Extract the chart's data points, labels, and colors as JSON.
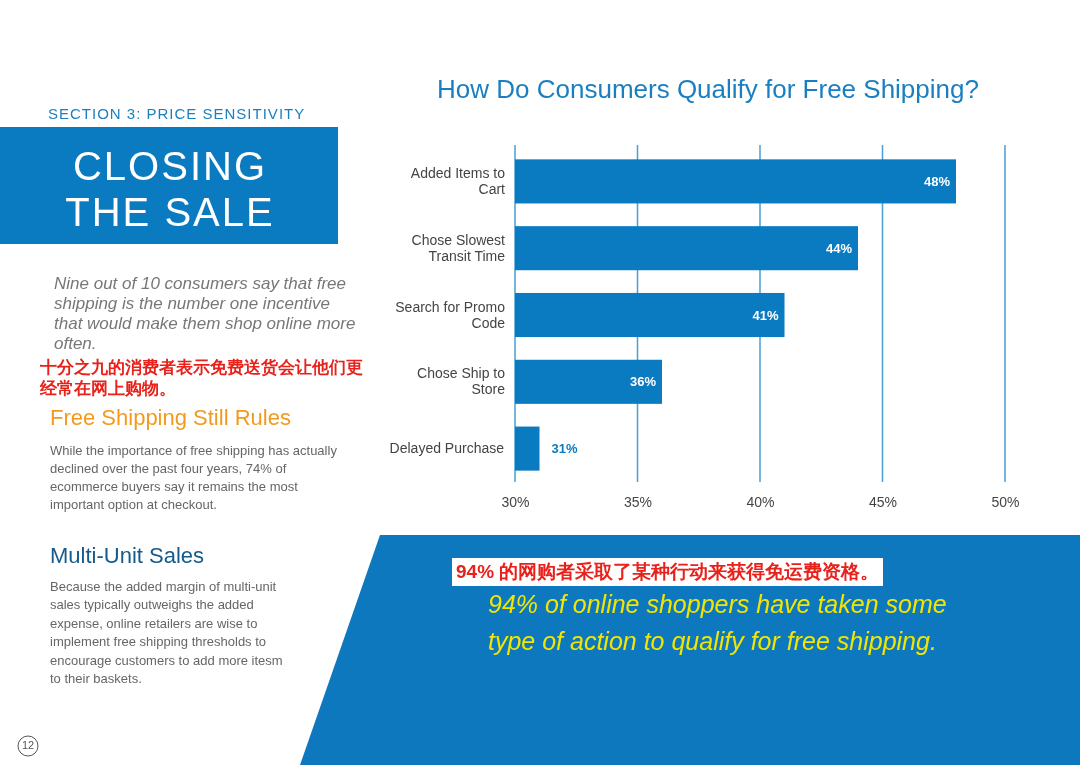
{
  "chart_data": {
    "type": "bar",
    "orientation": "horizontal",
    "title": "How Do Consumers Qualify for Free Shipping?",
    "categories": [
      "Added Items to Cart",
      "Chose Slowest Transit Time",
      "Search for Promo Code",
      "Chose Ship to Store",
      "Delayed Purchase"
    ],
    "values": [
      48,
      44,
      41,
      36,
      31
    ],
    "value_labels": [
      "48%",
      "44%",
      "41%",
      "36%",
      "31%"
    ],
    "color": "#0a7bc1",
    "xlim": [
      30,
      50
    ],
    "xticks": [
      {
        "value": 30,
        "label": "30%"
      },
      {
        "value": 35,
        "label": "35%"
      },
      {
        "value": 40,
        "label": "40%"
      },
      {
        "value": 45,
        "label": "45%"
      },
      {
        "value": 50,
        "label": "50%"
      }
    ],
    "grid": "x",
    "annotations": [
      "SECTION 3: PRICE SENSITIVITY",
      "CLOSING THE SALE",
      "Nine out of 10 consumers say that free shipping is the number one incentive that would make them shop online more often.",
      "十分之九的消费者表示免费送货会让他们更经常在网上购物。",
      "Free Shipping Still Rules",
      "While the importance of free shipping has actually declined over the past four years, 74% of ecommerce buyers say it remains the most important option at checkout.",
      "Multi-Unit Sales",
      "Because the added margin of multi-unit sales typically outweighs the added expense, online retailers are wise to implement free shipping thresholds to encourage customers to add more itesm to their baskets.",
      "94% 的网购者采取了某种行动来获得免运费资格。",
      "94% of online shoppers have taken some type of action to qualify for free shipping.",
      "12"
    ]
  }
}
